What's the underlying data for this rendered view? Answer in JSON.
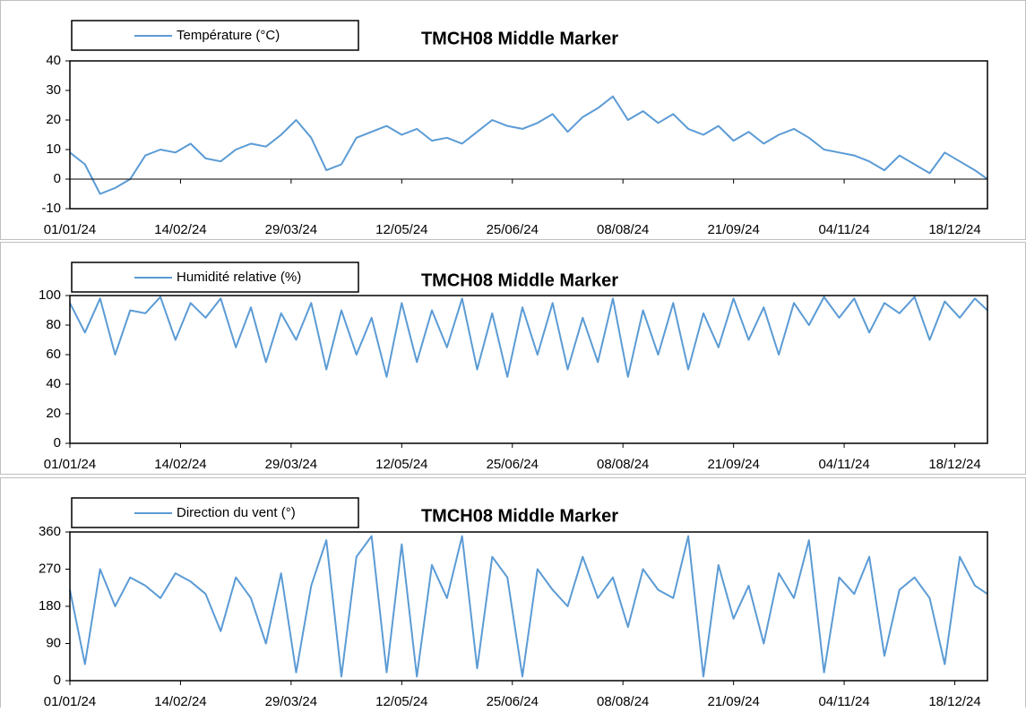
{
  "chart_data": [
    {
      "type": "line",
      "title": "TMCH08 Middle Marker",
      "x": [
        "01/01/24",
        "07/01/24",
        "13/01/24",
        "19/01/24",
        "25/01/24",
        "31/01/24",
        "06/02/24",
        "12/02/24",
        "18/02/24",
        "24/02/24",
        "01/03/24",
        "07/03/24",
        "13/03/24",
        "19/03/24",
        "25/03/24",
        "31/03/24",
        "06/04/24",
        "12/04/24",
        "18/04/24",
        "24/04/24",
        "30/04/24",
        "06/05/24",
        "12/05/24",
        "18/05/24",
        "24/05/24",
        "30/05/24",
        "05/06/24",
        "11/06/24",
        "17/06/24",
        "23/06/24",
        "29/06/24",
        "05/07/24",
        "11/07/24",
        "17/07/24",
        "23/07/24",
        "29/07/24",
        "04/08/24",
        "10/08/24",
        "16/08/24",
        "22/08/24",
        "28/08/24",
        "03/09/24",
        "09/09/24",
        "15/09/24",
        "21/09/24",
        "27/09/24",
        "03/10/24",
        "09/10/24",
        "15/10/24",
        "21/10/24",
        "27/10/24",
        "02/11/24",
        "08/11/24",
        "14/11/24",
        "20/11/24",
        "26/11/24",
        "02/12/24",
        "08/12/24",
        "14/12/24",
        "20/12/24",
        "26/12/24",
        "31/12/24"
      ],
      "series": [
        {
          "name": "Température (°C)",
          "color": "#5b9bd5",
          "values": [
            9,
            5,
            -5,
            -3,
            0,
            8,
            10,
            9,
            12,
            7,
            6,
            10,
            12,
            11,
            15,
            20,
            14,
            3,
            5,
            14,
            16,
            18,
            15,
            17,
            13,
            14,
            12,
            16,
            20,
            18,
            17,
            19,
            22,
            16,
            21,
            24,
            28,
            20,
            23,
            19,
            22,
            17,
            15,
            18,
            13,
            16,
            12,
            15,
            17,
            14,
            10,
            9,
            8,
            6,
            3,
            8,
            5,
            2,
            9,
            6,
            3,
            0
          ]
        }
      ],
      "xlim": [
        "01/01/24",
        "31/12/24"
      ],
      "xticks": [
        "01/01/24",
        "14/02/24",
        "29/03/24",
        "12/05/24",
        "25/06/24",
        "08/08/24",
        "21/09/24",
        "04/11/24",
        "18/12/24"
      ],
      "ylim": [
        -10,
        40
      ],
      "yticks": [
        -10,
        0,
        10,
        20,
        30,
        40
      ]
    },
    {
      "type": "line",
      "title": "TMCH08 Middle Marker",
      "x": [
        "01/01/24",
        "07/01/24",
        "13/01/24",
        "19/01/24",
        "25/01/24",
        "31/01/24",
        "06/02/24",
        "12/02/24",
        "18/02/24",
        "24/02/24",
        "01/03/24",
        "07/03/24",
        "13/03/24",
        "19/03/24",
        "25/03/24",
        "31/03/24",
        "06/04/24",
        "12/04/24",
        "18/04/24",
        "24/04/24",
        "30/04/24",
        "06/05/24",
        "12/05/24",
        "18/05/24",
        "24/05/24",
        "30/05/24",
        "05/06/24",
        "11/06/24",
        "17/06/24",
        "23/06/24",
        "29/06/24",
        "05/07/24",
        "11/07/24",
        "17/07/24",
        "23/07/24",
        "29/07/24",
        "04/08/24",
        "10/08/24",
        "16/08/24",
        "22/08/24",
        "28/08/24",
        "03/09/24",
        "09/09/24",
        "15/09/24",
        "21/09/24",
        "27/09/24",
        "03/10/24",
        "09/10/24",
        "15/10/24",
        "21/10/24",
        "27/10/24",
        "02/11/24",
        "08/11/24",
        "14/11/24",
        "20/11/24",
        "26/11/24",
        "02/12/24",
        "08/12/24",
        "14/12/24",
        "20/12/24",
        "26/12/24",
        "31/12/24"
      ],
      "series": [
        {
          "name": "Humidité relative (%)",
          "color": "#5b9bd5",
          "values": [
            95,
            75,
            98,
            60,
            90,
            88,
            99,
            70,
            95,
            85,
            98,
            65,
            92,
            55,
            88,
            70,
            95,
            50,
            90,
            60,
            85,
            45,
            95,
            55,
            90,
            65,
            98,
            50,
            88,
            45,
            92,
            60,
            95,
            50,
            85,
            55,
            98,
            45,
            90,
            60,
            95,
            50,
            88,
            65,
            98,
            70,
            92,
            60,
            95,
            80,
            99,
            85,
            98,
            75,
            95,
            88,
            99,
            70,
            96,
            85,
            98,
            90
          ]
        }
      ],
      "xlim": [
        "01/01/24",
        "31/12/24"
      ],
      "xticks": [
        "01/01/24",
        "14/02/24",
        "29/03/24",
        "12/05/24",
        "25/06/24",
        "08/08/24",
        "21/09/24",
        "04/11/24",
        "18/12/24"
      ],
      "ylim": [
        0,
        100
      ],
      "yticks": [
        0,
        20,
        40,
        60,
        80,
        100
      ]
    },
    {
      "type": "line",
      "title": "TMCH08 Middle Marker",
      "x": [
        "01/01/24",
        "07/01/24",
        "13/01/24",
        "19/01/24",
        "25/01/24",
        "31/01/24",
        "06/02/24",
        "12/02/24",
        "18/02/24",
        "24/02/24",
        "01/03/24",
        "07/03/24",
        "13/03/24",
        "19/03/24",
        "25/03/24",
        "31/03/24",
        "06/04/24",
        "12/04/24",
        "18/04/24",
        "24/04/24",
        "30/04/24",
        "06/05/24",
        "12/05/24",
        "18/05/24",
        "24/05/24",
        "30/05/24",
        "05/06/24",
        "11/06/24",
        "17/06/24",
        "23/06/24",
        "29/06/24",
        "05/07/24",
        "11/07/24",
        "17/07/24",
        "23/07/24",
        "29/07/24",
        "04/08/24",
        "10/08/24",
        "16/08/24",
        "22/08/24",
        "28/08/24",
        "03/09/24",
        "09/09/24",
        "15/09/24",
        "21/09/24",
        "27/09/24",
        "03/10/24",
        "09/10/24",
        "15/10/24",
        "21/10/24",
        "27/10/24",
        "02/11/24",
        "08/11/24",
        "14/11/24",
        "20/11/24",
        "26/11/24",
        "02/12/24",
        "08/12/24",
        "14/12/24",
        "20/12/24",
        "26/12/24",
        "31/12/24"
      ],
      "series": [
        {
          "name": "Direction du vent (°)",
          "color": "#5b9bd5",
          "values": [
            220,
            40,
            270,
            180,
            250,
            230,
            200,
            260,
            240,
            210,
            120,
            250,
            200,
            90,
            260,
            20,
            230,
            340,
            10,
            300,
            350,
            20,
            330,
            10,
            280,
            200,
            350,
            30,
            300,
            250,
            10,
            270,
            220,
            180,
            300,
            200,
            250,
            130,
            270,
            220,
            200,
            350,
            10,
            280,
            150,
            230,
            90,
            260,
            200,
            340,
            20,
            250,
            210,
            300,
            60,
            220,
            250,
            200,
            40,
            300,
            230,
            210
          ]
        }
      ],
      "xlim": [
        "01/01/24",
        "31/12/24"
      ],
      "xticks": [
        "01/01/24",
        "14/02/24",
        "29/03/24",
        "12/05/24",
        "25/06/24",
        "08/08/24",
        "21/09/24",
        "04/11/24",
        "18/12/24"
      ],
      "ylim": [
        0,
        360
      ],
      "yticks": [
        0,
        90,
        180,
        270,
        360
      ]
    }
  ]
}
